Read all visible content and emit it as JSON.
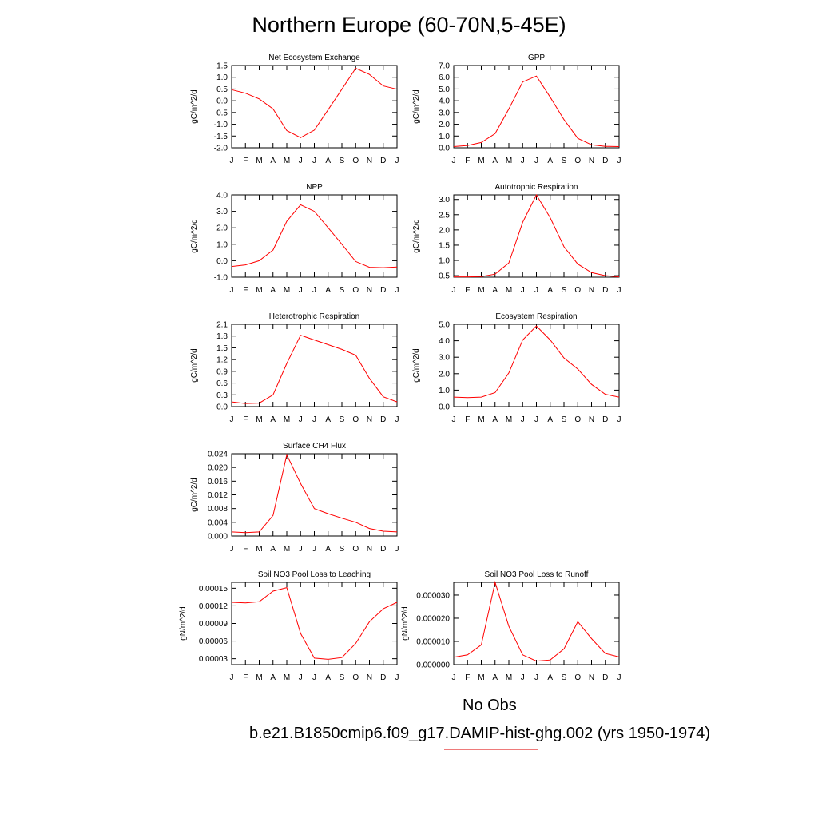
{
  "title": "Northern Europe (60-70N,5-45E)",
  "month_labels": [
    "J",
    "F",
    "M",
    "A",
    "M",
    "J",
    "J",
    "A",
    "S",
    "O",
    "N",
    "D",
    "J"
  ],
  "legend": {
    "obs_label": "No Obs",
    "obs_color": "#8a8aee",
    "model_label": "b.e21.B1850cmip6.f09_g17.DAMIP-hist-ghg.002 (yrs 1950-1974)",
    "model_color": "#ee7a7a"
  },
  "series_color": "#ff0000",
  "chart_data": [
    {
      "type": "line",
      "title": "Net Ecosystem Exchange",
      "ylabel": "gC/m^2/d",
      "ylim": [
        -2.0,
        1.5
      ],
      "yticks": [
        -2.0,
        -1.5,
        -1.0,
        -0.5,
        0.0,
        0.5,
        1.0,
        1.5
      ],
      "yticklabels": [
        "-2.0",
        "-1.5",
        "-1.0",
        "-0.5",
        "0.0",
        "0.5",
        "1.0",
        "1.5"
      ],
      "values": [
        0.47,
        0.32,
        0.08,
        -0.35,
        -1.27,
        -1.57,
        -1.25,
        -0.38,
        0.49,
        1.38,
        1.12,
        0.63,
        0.49
      ]
    },
    {
      "type": "line",
      "title": "GPP",
      "ylabel": "gC/m^2/d",
      "ylim": [
        0.0,
        7.0
      ],
      "yticks": [
        0,
        1,
        2,
        3,
        4,
        5,
        6,
        7
      ],
      "yticklabels": [
        "0.0",
        "1.0",
        "2.0",
        "3.0",
        "4.0",
        "5.0",
        "6.0",
        "7.0"
      ],
      "values": [
        0.1,
        0.2,
        0.45,
        1.2,
        3.3,
        5.6,
        6.1,
        4.3,
        2.4,
        0.8,
        0.25,
        0.12,
        0.1
      ]
    },
    {
      "type": "line",
      "title": "NPP",
      "ylabel": "gC/m^2/d",
      "ylim": [
        -1.0,
        4.0
      ],
      "yticks": [
        -1,
        0,
        1,
        2,
        3,
        4
      ],
      "yticklabels": [
        "-1.0",
        "0.0",
        "1.0",
        "2.0",
        "3.0",
        "4.0"
      ],
      "values": [
        -0.35,
        -0.25,
        0.0,
        0.65,
        2.4,
        3.4,
        3.0,
        2.0,
        1.0,
        -0.05,
        -0.4,
        -0.42,
        -0.38
      ]
    },
    {
      "type": "line",
      "title": "Autotrophic Respiration",
      "ylabel": "gC/m^2/d",
      "ylim": [
        0.45,
        3.15
      ],
      "yticks": [
        0.5,
        1.0,
        1.5,
        2.0,
        2.5,
        3.0
      ],
      "yticklabels": [
        "0.5",
        "1.0",
        "1.5",
        "2.0",
        "2.5",
        "3.0"
      ],
      "values": [
        0.46,
        0.46,
        0.47,
        0.55,
        0.92,
        2.25,
        3.15,
        2.4,
        1.45,
        0.88,
        0.6,
        0.5,
        0.46
      ]
    },
    {
      "type": "line",
      "title": "Heterotrophic Respiration",
      "ylabel": "gC/m^2/d",
      "ylim": [
        0.0,
        2.1
      ],
      "yticks": [
        0,
        0.3,
        0.6,
        0.9,
        1.2,
        1.5,
        1.8,
        2.1
      ],
      "yticklabels": [
        "0.0",
        "0.3",
        "0.6",
        "0.9",
        "1.2",
        "1.5",
        "1.8",
        "2.1"
      ],
      "values": [
        0.12,
        0.08,
        0.09,
        0.3,
        1.1,
        1.82,
        1.7,
        1.58,
        1.46,
        1.31,
        0.72,
        0.25,
        0.12
      ]
    },
    {
      "type": "line",
      "title": "Ecosystem Respiration",
      "ylabel": "gC/m^2/d",
      "ylim": [
        0.0,
        5.0
      ],
      "yticks": [
        0,
        1,
        2,
        3,
        4,
        5
      ],
      "yticklabels": [
        "0.0",
        "1.0",
        "2.0",
        "3.0",
        "4.0",
        "5.0"
      ],
      "values": [
        0.58,
        0.55,
        0.58,
        0.85,
        2.05,
        4.05,
        4.9,
        4.05,
        2.95,
        2.28,
        1.35,
        0.75,
        0.58
      ]
    },
    {
      "type": "line",
      "title": "Surface CH4 Flux",
      "ylabel": "gC/m^2/d",
      "ylim": [
        0.0,
        0.024
      ],
      "yticks": [
        0,
        0.004,
        0.008,
        0.012,
        0.016,
        0.02,
        0.024
      ],
      "yticklabels": [
        "0.000",
        "0.004",
        "0.008",
        "0.012",
        "0.016",
        "0.020",
        "0.024"
      ],
      "values": [
        0.0012,
        0.001,
        0.0012,
        0.006,
        0.0237,
        0.0153,
        0.008,
        0.0065,
        0.0052,
        0.004,
        0.0022,
        0.0014,
        0.0012
      ]
    },
    {
      "type": "line",
      "title": "Soil NO3 Pool Loss to Leaching",
      "ylabel": "gN/m^2/d",
      "ylim": [
        2e-05,
        0.00016
      ],
      "yticks": [
        3e-05,
        6e-05,
        9e-05,
        0.00012,
        0.00015
      ],
      "yticklabels": [
        "0.00003",
        "0.00006",
        "0.00009",
        "0.00012",
        "0.00015"
      ],
      "values": [
        0.000126,
        0.000125,
        0.000127,
        0.000145,
        0.000151,
        7.3e-05,
        3.1e-05,
        2.9e-05,
        3.2e-05,
        5.6e-05,
        9.3e-05,
        0.000115,
        0.000126
      ]
    },
    {
      "type": "line",
      "title": "Soil NO3 Pool Loss to Runoff",
      "ylabel": "gN/m^2/d",
      "ylim": [
        0.0,
        3.55e-05
      ],
      "yticks": [
        0,
        1e-05,
        2e-05,
        3e-05
      ],
      "yticklabels": [
        "0.000000",
        "0.000010",
        "0.000020",
        "0.000030"
      ],
      "values": [
        3.2e-06,
        4.2e-06,
        8.5e-06,
        3.55e-05,
        1.65e-05,
        4.2e-06,
        1.5e-06,
        2e-06,
        6.8e-06,
        1.85e-05,
        1.12e-05,
        4.8e-06,
        3.3e-06
      ]
    }
  ]
}
